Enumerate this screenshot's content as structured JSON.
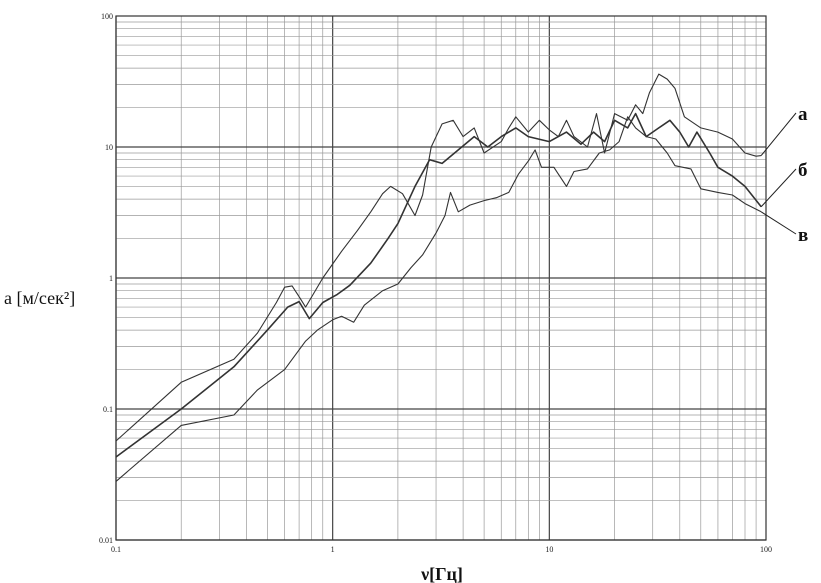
{
  "chart_data": {
    "type": "line",
    "xscale": "log",
    "yscale": "log",
    "xlim": [
      0.1,
      100
    ],
    "ylim": [
      0.01,
      100
    ],
    "grid": true,
    "xlabel": "ν[Гц]",
    "ylabel": "a [м/сек²]",
    "x_tick_labels": [
      "0.1",
      "1",
      "10",
      "100"
    ],
    "y_tick_labels": [
      "0.01",
      "0.1",
      "1",
      "10",
      "100"
    ],
    "colors": {
      "line": "#333333",
      "grid_major": "#444444",
      "grid_minor": "#9a9a9a"
    },
    "series": [
      {
        "name": "а",
        "points": [
          [
            0.1,
            0.057
          ],
          [
            0.2,
            0.16
          ],
          [
            0.35,
            0.24
          ],
          [
            0.45,
            0.38
          ],
          [
            0.55,
            0.65
          ],
          [
            0.6,
            0.85
          ],
          [
            0.65,
            0.87
          ],
          [
            0.7,
            0.72
          ],
          [
            0.75,
            0.6
          ],
          [
            0.9,
            1.0
          ],
          [
            1.1,
            1.6
          ],
          [
            1.3,
            2.3
          ],
          [
            1.5,
            3.2
          ],
          [
            1.7,
            4.4
          ],
          [
            1.85,
            5.0
          ],
          [
            2.1,
            4.4
          ],
          [
            2.4,
            3.0
          ],
          [
            2.6,
            4.3
          ],
          [
            2.85,
            10.0
          ],
          [
            3.2,
            15.0
          ],
          [
            3.6,
            16.0
          ],
          [
            4.0,
            12.0
          ],
          [
            4.5,
            14.0
          ],
          [
            5.0,
            9.0
          ],
          [
            6.0,
            11.0
          ],
          [
            6.5,
            14.0
          ],
          [
            7.0,
            17.0
          ],
          [
            8.0,
            13.0
          ],
          [
            9.0,
            16.0
          ],
          [
            10.0,
            13.5
          ],
          [
            11.0,
            12.0
          ],
          [
            12.0,
            16.0
          ],
          [
            13.0,
            12.0
          ],
          [
            15.0,
            10.0
          ],
          [
            16.5,
            18.0
          ],
          [
            18.0,
            9.0
          ],
          [
            20.0,
            18.0
          ],
          [
            23.0,
            16.0
          ],
          [
            25.0,
            21.0
          ],
          [
            27.0,
            18.0
          ],
          [
            29.0,
            26.0
          ],
          [
            32.0,
            36.0
          ],
          [
            35.0,
            33.0
          ],
          [
            38.0,
            28.0
          ],
          [
            42.0,
            17.0
          ],
          [
            50.0,
            14.0
          ],
          [
            60.0,
            13.0
          ],
          [
            70.0,
            11.5
          ],
          [
            80.0,
            9.0
          ],
          [
            90.0,
            8.5
          ],
          [
            95.0,
            8.6
          ]
        ]
      },
      {
        "name": "б",
        "points": [
          [
            0.1,
            0.043
          ],
          [
            0.2,
            0.1
          ],
          [
            0.35,
            0.21
          ],
          [
            0.5,
            0.4
          ],
          [
            0.62,
            0.6
          ],
          [
            0.7,
            0.66
          ],
          [
            0.78,
            0.49
          ],
          [
            0.9,
            0.65
          ],
          [
            1.05,
            0.75
          ],
          [
            1.2,
            0.88
          ],
          [
            1.5,
            1.3
          ],
          [
            1.8,
            2.0
          ],
          [
            2.0,
            2.6
          ],
          [
            2.4,
            5.0
          ],
          [
            2.8,
            8.0
          ],
          [
            3.2,
            7.5
          ],
          [
            3.8,
            9.5
          ],
          [
            4.5,
            12.0
          ],
          [
            5.2,
            10.0
          ],
          [
            6.0,
            12.0
          ],
          [
            7.0,
            14.0
          ],
          [
            8.0,
            12.0
          ],
          [
            10.0,
            11.0
          ],
          [
            12.0,
            13.0
          ],
          [
            14.0,
            10.5
          ],
          [
            16.0,
            13.0
          ],
          [
            18.0,
            11.0
          ],
          [
            20.0,
            16.0
          ],
          [
            23.0,
            14.0
          ],
          [
            25.0,
            18.0
          ],
          [
            28.0,
            12.0
          ],
          [
            32.0,
            14.0
          ],
          [
            36.0,
            16.0
          ],
          [
            40.0,
            13.0
          ],
          [
            44.0,
            10.0
          ],
          [
            48.0,
            13.0
          ],
          [
            55.0,
            9.0
          ],
          [
            60.0,
            7.0
          ],
          [
            70.0,
            6.0
          ],
          [
            80.0,
            5.0
          ],
          [
            95.0,
            3.5
          ]
        ]
      },
      {
        "name": "в",
        "points": [
          [
            0.1,
            0.028
          ],
          [
            0.2,
            0.075
          ],
          [
            0.35,
            0.09
          ],
          [
            0.45,
            0.14
          ],
          [
            0.6,
            0.2
          ],
          [
            0.75,
            0.33
          ],
          [
            0.85,
            0.4
          ],
          [
            1.0,
            0.48
          ],
          [
            1.1,
            0.51
          ],
          [
            1.25,
            0.46
          ],
          [
            1.4,
            0.62
          ],
          [
            1.7,
            0.8
          ],
          [
            2.0,
            0.9
          ],
          [
            2.3,
            1.2
          ],
          [
            2.6,
            1.5
          ],
          [
            3.0,
            2.2
          ],
          [
            3.3,
            3.0
          ],
          [
            3.5,
            4.5
          ],
          [
            3.8,
            3.2
          ],
          [
            4.3,
            3.6
          ],
          [
            5.0,
            3.9
          ],
          [
            5.7,
            4.1
          ],
          [
            6.5,
            4.5
          ],
          [
            7.2,
            6.2
          ],
          [
            8.0,
            7.8
          ],
          [
            8.6,
            9.5
          ],
          [
            9.2,
            7.0
          ],
          [
            10.5,
            7.0
          ],
          [
            12.0,
            5.0
          ],
          [
            13.0,
            6.5
          ],
          [
            15.0,
            6.8
          ],
          [
            17.0,
            9.0
          ],
          [
            19.0,
            9.5
          ],
          [
            21.0,
            11.0
          ],
          [
            23.0,
            17.0
          ],
          [
            25.0,
            14.0
          ],
          [
            28.0,
            12.0
          ],
          [
            31.0,
            11.5
          ],
          [
            35.0,
            9.0
          ],
          [
            38.0,
            7.2
          ],
          [
            45.0,
            6.8
          ],
          [
            50.0,
            4.8
          ],
          [
            60.0,
            4.5
          ],
          [
            70.0,
            4.3
          ],
          [
            80.0,
            3.7
          ],
          [
            95.0,
            3.2
          ]
        ]
      }
    ]
  }
}
